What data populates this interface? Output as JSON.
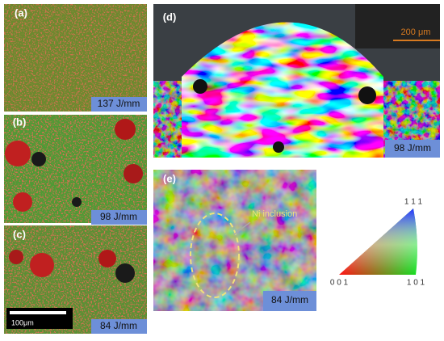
{
  "panels": [
    {
      "label": "(a)",
      "energy": "137 J/mm"
    },
    {
      "label": "(b)",
      "energy": "98 J/mm"
    },
    {
      "label": "(c)",
      "energy": "84 J/mm",
      "scale_bar": "100μm"
    },
    {
      "label": "(d)",
      "energy": "98 J/mm",
      "scale_bar": "200 μm"
    },
    {
      "label": "(e)",
      "energy": "84 J/mm",
      "annotation": "Ni inclusion"
    }
  ],
  "legend": {
    "top": "1 1 1",
    "left": "0 0 1",
    "right": "1 0 1"
  }
}
